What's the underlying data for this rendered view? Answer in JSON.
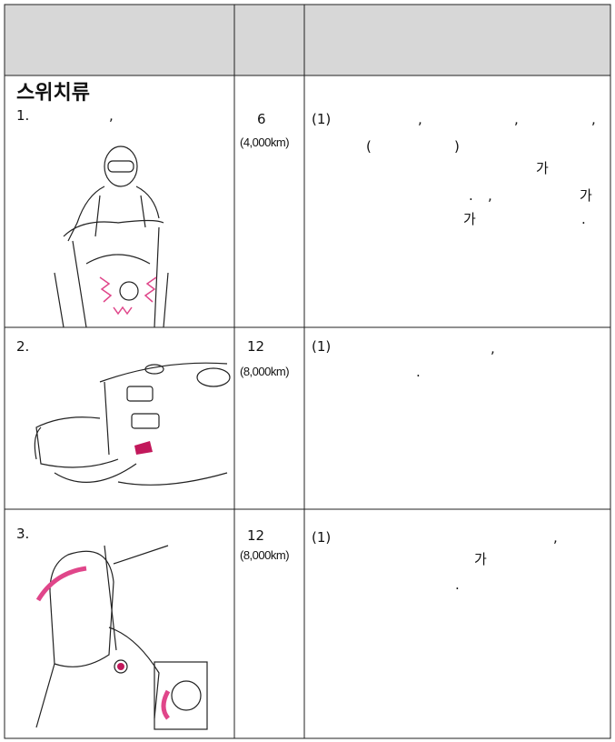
{
  "rows": [
    {
      "item": {
        "title": "스위치류",
        "fragments": [
          "1.",
          ","
        ]
      },
      "interval": {
        "months": "6",
        "distance": "(4,000km)"
      },
      "detail": [
        "(1)",
        ",",
        ",",
        ",",
        "(",
        ")",
        "가",
        ".",
        ",",
        "가",
        "가",
        "."
      ]
    },
    {
      "item": {
        "fragments": [
          "2."
        ]
      },
      "interval": {
        "months": "12",
        "distance": "(8,000km)"
      },
      "detail": [
        "(1)",
        ",",
        "."
      ]
    },
    {
      "item": {
        "fragments": [
          "3."
        ]
      },
      "interval": {
        "months": "12",
        "distance": "(8,000km)"
      },
      "detail": [
        "(1)",
        ",",
        "가",
        "."
      ]
    }
  ]
}
